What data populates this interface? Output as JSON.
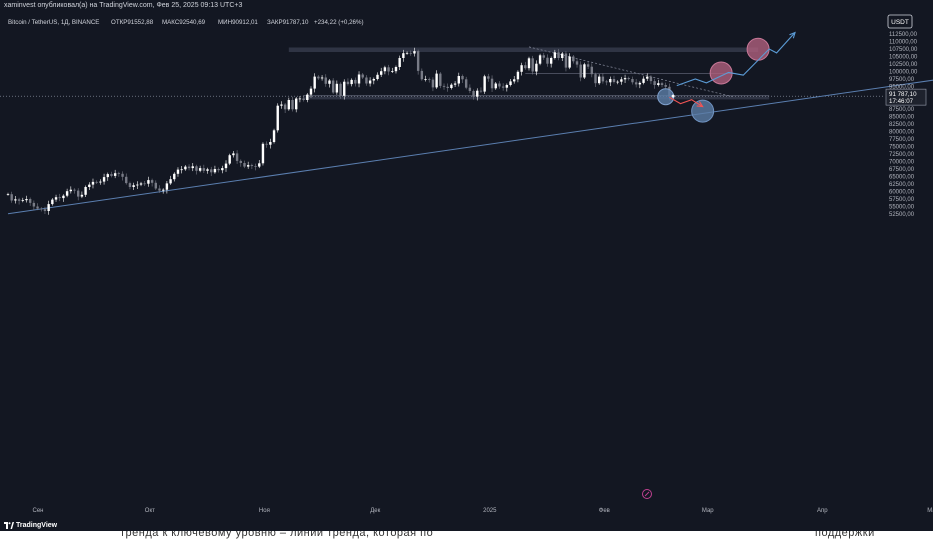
{
  "header": {
    "attribution": "xaminvest опубликовал(а) на TradingView.com, Фев 25, 2025 09:13 UTC+3"
  },
  "footer": {
    "brand": "TradingView",
    "below_text_left": "тренда к ключевому уровню – линии тренда, которая по",
    "below_text_right": "поддержки"
  },
  "colors": {
    "background": "#131722",
    "candle_up": "#ffffff",
    "candle_down": "#787b86",
    "trendline": "#5b7fb0",
    "arrow_up": "#5b9bd5",
    "arrow_down": "#f05454",
    "circle_pink": "#b0607e",
    "circle_blue": "#5c7ea8",
    "zone": "#3a3f50"
  },
  "chart_data": {
    "type": "candlestick",
    "symbol_line": {
      "name": "Bitcoin / TetherUS, 1Д, BINANCE",
      "open": "ОТКР91552,88",
      "high": "МАКС92540,69",
      "low": "МИН90912,01",
      "close": "ЗАКР91787,10",
      "change": "+234,22 (+0,26%)"
    },
    "currency_label": "USDT",
    "price_axis": {
      "min": 51000,
      "max": 115000,
      "ticks": [
        "112500,00",
        "110000,00",
        "107500,00",
        "105000,00",
        "102500,00",
        "100000,00",
        "97500,00",
        "95000,00",
        "87500,00",
        "85000,00",
        "82500,00",
        "80000,00",
        "77500,00",
        "75000,00",
        "72500,00",
        "70000,00",
        "67500,00",
        "65000,00",
        "62500,00",
        "60000,00",
        "57500,00",
        "55000,00",
        "52500,00"
      ],
      "tick_values": [
        112500,
        110000,
        107500,
        105000,
        102500,
        100000,
        97500,
        95000,
        87500,
        85000,
        82500,
        80000,
        77500,
        75000,
        72500,
        70000,
        67500,
        65000,
        62500,
        60000,
        57500,
        55000,
        52500
      ]
    },
    "last_price": {
      "value": 91787.1,
      "label": "91 787,10",
      "countdown": "17:46:07"
    },
    "time_axis": {
      "labels": [
        "Сен",
        "Окт",
        "Ноя",
        "Дек",
        "2025",
        "Фев",
        "Мар",
        "Апр",
        "Май"
      ],
      "day_index": [
        0,
        30,
        61,
        91,
        122,
        153,
        181,
        212,
        242
      ]
    },
    "closes": [
      59100,
      57000,
      57400,
      56900,
      57100,
      57500,
      56200,
      55000,
      54300,
      54100,
      53500,
      55800,
      57300,
      58100,
      57800,
      58600,
      60100,
      60600,
      60300,
      58300,
      58900,
      61500,
      62300,
      63200,
      63000,
      63300,
      64800,
      65800,
      65200,
      66100,
      65900,
      64900,
      62800,
      61500,
      62100,
      62300,
      62700,
      62600,
      63800,
      62900,
      61000,
      60300,
      60600,
      62700,
      64100,
      65900,
      67300,
      67400,
      68300,
      67800,
      68400,
      66900,
      67800,
      66900,
      67400,
      66400,
      67500,
      67100,
      67800,
      69300,
      72100,
      72700,
      70200,
      69500,
      68300,
      68800,
      68500,
      68300,
      69400,
      75900,
      75600,
      76500,
      80400,
      88600,
      89000,
      87400,
      90500,
      87400,
      91000,
      91000,
      90500,
      92300,
      94300,
      98300,
      97700,
      98000,
      95900,
      97000,
      93000,
      95900,
      91900,
      96600,
      95800,
      97200,
      96000,
      99000,
      98000,
      96000,
      97000,
      97500,
      98900,
      100100,
      101400,
      100000,
      100100,
      101500,
      104500,
      106100,
      106200,
      106000,
      106800,
      100200,
      97400,
      97500,
      97300,
      94700,
      99300,
      95200,
      94900,
      94500,
      95600,
      96000,
      98500,
      97400,
      94600,
      93500,
      91600,
      93600,
      93300,
      98400,
      97600,
      94400,
      96000,
      95000,
      94600,
      95500,
      96700,
      97400,
      99900,
      102100,
      101100,
      104400,
      100000,
      102600,
      105400,
      104600,
      102600,
      104500,
      106400,
      104500,
      106000,
      101300,
      105000,
      103400,
      102300,
      98000,
      102400,
      101600,
      99100,
      96100,
      98300,
      96700,
      96400,
      97500,
      96500,
      96600,
      97400,
      97800,
      97500,
      96400,
      95700,
      96200,
      97600,
      98300,
      96800,
      95500,
      96100,
      95500,
      94900,
      91600,
      91800
    ],
    "zones": [
      {
        "label": "resistance",
        "y_top": 108000,
        "y_bottom": 106500
      },
      {
        "label": "support",
        "y_top": 91700,
        "y_bottom": 90700
      }
    ],
    "reference_lines": [
      {
        "label": "horizontal_99300",
        "y": 99300
      },
      {
        "label": "horizontal_92000",
        "y": 92000
      }
    ],
    "trendline": {
      "from": {
        "day": 0,
        "price": 52600
      },
      "to": {
        "day": 252,
        "price": 97400
      }
    },
    "arrows": {
      "up_path": [
        {
          "day": 181,
          "price": 95300
        },
        {
          "day": 186,
          "price": 97500
        },
        {
          "day": 189,
          "price": 96200
        },
        {
          "day": 195,
          "price": 99700
        },
        {
          "day": 199,
          "price": 98800
        },
        {
          "day": 206,
          "price": 107500
        },
        {
          "day": 208,
          "price": 106200
        },
        {
          "day": 213,
          "price": 113000
        }
      ],
      "down_path": [
        {
          "day": 179,
          "price": 91400
        },
        {
          "day": 182,
          "price": 89300
        },
        {
          "day": 185,
          "price": 90600
        },
        {
          "day": 188,
          "price": 88300
        }
      ]
    },
    "circles": [
      {
        "day": 178,
        "price": 91600,
        "color": "blue_small"
      },
      {
        "day": 188,
        "price": 86800,
        "color": "blue"
      },
      {
        "day": 193,
        "price": 99500,
        "color": "pink"
      },
      {
        "day": 203,
        "price": 107400,
        "color": "pink"
      }
    ]
  }
}
